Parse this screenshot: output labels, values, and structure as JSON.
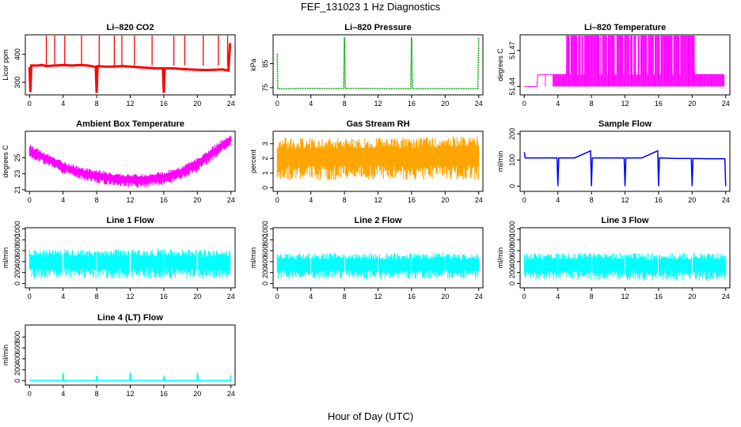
{
  "figure": {
    "title": "FEF_131023  1 Hz Diagnostics",
    "xlabel": "Hour of Day (UTC)"
  },
  "chart_data": [
    {
      "type": "line",
      "title": "Li–820 CO2",
      "ylabel": "Licor ppm",
      "color": "#ff0000",
      "xlim": [
        -0.5,
        24.5
      ],
      "ylim": [
        255,
        470
      ],
      "xticks": [
        0,
        4,
        8,
        12,
        16,
        20,
        24
      ],
      "yticks": [
        300,
        400
      ],
      "x": [
        0,
        0.1,
        0.2,
        1,
        1.5,
        2,
        3,
        4,
        5,
        6,
        7,
        7.9,
        8,
        8.1,
        9,
        10,
        11,
        12,
        13,
        14,
        15,
        15.9,
        16,
        16.1,
        17,
        18,
        19,
        20,
        21,
        22,
        23,
        23.7,
        23.9
      ],
      "y": [
        355,
        265,
        360,
        360,
        362,
        358,
        360,
        362,
        360,
        362,
        360,
        355,
        262,
        358,
        356,
        356,
        358,
        356,
        354,
        352,
        350,
        350,
        262,
        350,
        350,
        348,
        346,
        345,
        344,
        345,
        346,
        342,
        440
      ],
      "spikes": [
        2,
        3,
        4.2,
        6.2,
        8.3,
        10.1,
        11,
        12.5,
        14.6,
        17.2,
        18.5,
        20.7,
        22.5,
        23.6
      ]
    },
    {
      "type": "line",
      "title": "Li–820 Pressure",
      "ylabel": "kPa",
      "color": "#00aa00",
      "xlim": [
        -0.5,
        24.5
      ],
      "ylim": [
        72,
        97
      ],
      "xticks": [
        0,
        4,
        8,
        12,
        16,
        20,
        24
      ],
      "yticks": [
        75,
        85
      ],
      "x": [
        0,
        0.05,
        0.3,
        2,
        4,
        6,
        7.9,
        8,
        8.1,
        10,
        12,
        14,
        15.9,
        16,
        16.1,
        18,
        20,
        22,
        23.9,
        24
      ],
      "y": [
        89,
        74.5,
        74.5,
        74.6,
        74.7,
        74.6,
        74.6,
        96,
        74.6,
        74.7,
        74.6,
        74.6,
        74.6,
        96,
        74.6,
        74.6,
        74.6,
        74.6,
        74.6,
        96
      ]
    },
    {
      "type": "area",
      "title": "Li–820 Temperature",
      "ylabel": "degrees C",
      "color": "#ff00ff",
      "xlim": [
        -0.5,
        24.5
      ],
      "ylim": [
        51.433,
        51.483
      ],
      "xticks": [
        0,
        4,
        8,
        12,
        16,
        20,
        24
      ],
      "yticks": [
        51.44,
        51.47
      ],
      "baseline": 51.44,
      "upper_levels": [
        51.45,
        51.483
      ],
      "x": [
        0,
        1.5,
        1.6,
        3.4,
        3.5,
        5,
        5.2,
        8,
        12,
        16,
        20,
        20.3,
        22,
        23.8
      ],
      "y": [
        51.44,
        51.44,
        51.45,
        51.45,
        51.45,
        51.45,
        51.483,
        51.483,
        51.483,
        51.483,
        51.483,
        51.45,
        51.45,
        51.45
      ]
    },
    {
      "type": "area",
      "title": "Ambient Box Temperature",
      "ylabel": "degrees C",
      "color": "#ff00ff",
      "xlim": [
        -0.5,
        24.5
      ],
      "ylim": [
        20.8,
        28.3
      ],
      "xticks": [
        0,
        4,
        8,
        12,
        16,
        20,
        24
      ],
      "yticks": [
        21,
        23,
        25
      ],
      "x": [
        0,
        2,
        4,
        6,
        8,
        10,
        12,
        14,
        16,
        18,
        20,
        22,
        24
      ],
      "y_low": [
        25,
        24,
        23,
        22.3,
        21.8,
        21.5,
        21.3,
        21.3,
        21.6,
        22.2,
        23.2,
        24.8,
        26.5
      ],
      "y_high": [
        26.7,
        25.6,
        24.6,
        23.9,
        23.5,
        23.2,
        23,
        23,
        23.3,
        23.9,
        25,
        26.6,
        28
      ]
    },
    {
      "type": "area",
      "title": "Gas Stream RH",
      "ylabel": "percent",
      "color": "#ffa500",
      "xlim": [
        -0.5,
        24.5
      ],
      "ylim": [
        -0.25,
        3.85
      ],
      "xticks": [
        0,
        4,
        8,
        12,
        16,
        20,
        24
      ],
      "yticks": [
        0,
        1,
        2,
        3
      ],
      "x": [
        0,
        4,
        8,
        12,
        16,
        20,
        24
      ],
      "y_low": [
        0.5,
        0.5,
        0.5,
        0.5,
        0.5,
        0.5,
        0.5
      ],
      "y_high": [
        3.4,
        3.4,
        3.4,
        3.4,
        3.4,
        3.5,
        3.6
      ]
    },
    {
      "type": "line",
      "title": "Sample Flow",
      "ylabel": "ml/min",
      "color": "#0000ff",
      "xlim": [
        -0.5,
        24.5
      ],
      "ylim": [
        -20,
        210
      ],
      "xticks": [
        0,
        4,
        8,
        12,
        16,
        20,
        24
      ],
      "yticks": [
        0,
        100,
        200
      ],
      "x": [
        0,
        0.1,
        2,
        3.9,
        4,
        4.1,
        6,
        7.9,
        8,
        8.1,
        10,
        11.9,
        12,
        12.1,
        14,
        15.9,
        16,
        16.1,
        18,
        19.9,
        20,
        20.1,
        22,
        23.9,
        24
      ],
      "y": [
        130,
        108,
        108,
        108,
        0,
        108,
        108,
        135,
        0,
        108,
        108,
        108,
        0,
        108,
        108,
        135,
        0,
        108,
        106,
        106,
        0,
        106,
        105,
        105,
        0
      ]
    },
    {
      "type": "area",
      "title": "Line 1 Flow",
      "ylabel": "ml/min",
      "color": "#00ffff",
      "xlim": [
        -0.5,
        24.5
      ],
      "ylim": [
        -80,
        1020
      ],
      "xticks": [
        0,
        4,
        8,
        12,
        16,
        20,
        24
      ],
      "yticks": [
        0,
        200,
        400,
        600,
        800,
        1000
      ],
      "x": [
        0,
        4,
        8,
        12,
        16,
        20,
        23.9
      ],
      "y_low": [
        90,
        90,
        90,
        90,
        90,
        90,
        90
      ],
      "y_high": [
        630,
        630,
        630,
        630,
        630,
        630,
        610
      ],
      "gaps": [
        4,
        8,
        12,
        16,
        20
      ]
    },
    {
      "type": "area",
      "title": "Line 2 Flow",
      "ylabel": "ml/min",
      "color": "#00ffff",
      "xlim": [
        -0.5,
        24.5
      ],
      "ylim": [
        -80,
        1020
      ],
      "xticks": [
        0,
        4,
        8,
        12,
        16,
        20,
        24
      ],
      "yticks": [
        0,
        200,
        400,
        600,
        800,
        1000
      ],
      "x": [
        0,
        4,
        8,
        12,
        16,
        20,
        24
      ],
      "y_low": [
        80,
        80,
        80,
        80,
        80,
        80,
        80
      ],
      "y_high": [
        560,
        560,
        560,
        560,
        560,
        560,
        540
      ],
      "gaps": [
        4,
        8,
        12,
        16,
        20
      ]
    },
    {
      "type": "area",
      "title": "Line 3 Flow",
      "ylabel": "ml/min",
      "color": "#00ffff",
      "xlim": [
        -0.5,
        24.5
      ],
      "ylim": [
        -80,
        1020
      ],
      "xticks": [
        0,
        4,
        8,
        12,
        16,
        20,
        24
      ],
      "yticks": [
        0,
        200,
        400,
        600,
        800,
        1000
      ],
      "x": [
        0,
        4,
        8,
        12,
        16,
        20,
        24
      ],
      "y_low": [
        60,
        60,
        60,
        60,
        60,
        60,
        60
      ],
      "y_high": [
        560,
        560,
        560,
        560,
        560,
        560,
        550
      ],
      "gaps": [
        4,
        8,
        12,
        16,
        20
      ]
    },
    {
      "type": "line",
      "title": "Line 4 (LT) Flow",
      "ylabel": "ml/min",
      "color": "#00ffff",
      "xlim": [
        -0.5,
        24.5
      ],
      "ylim": [
        -80,
        1020
      ],
      "xticks": [
        0,
        4,
        8,
        12,
        16,
        20,
        24
      ],
      "yticks": [
        0,
        200,
        400,
        600,
        800
      ],
      "x": [
        0,
        3.95,
        4,
        4.1,
        7.95,
        8,
        8.1,
        11.95,
        12,
        12.1,
        15.95,
        16,
        16.1,
        19.95,
        20,
        20.1,
        23.95,
        24
      ],
      "y": [
        5,
        5,
        150,
        5,
        5,
        90,
        5,
        5,
        150,
        5,
        5,
        90,
        5,
        5,
        150,
        5,
        5,
        100
      ]
    }
  ]
}
